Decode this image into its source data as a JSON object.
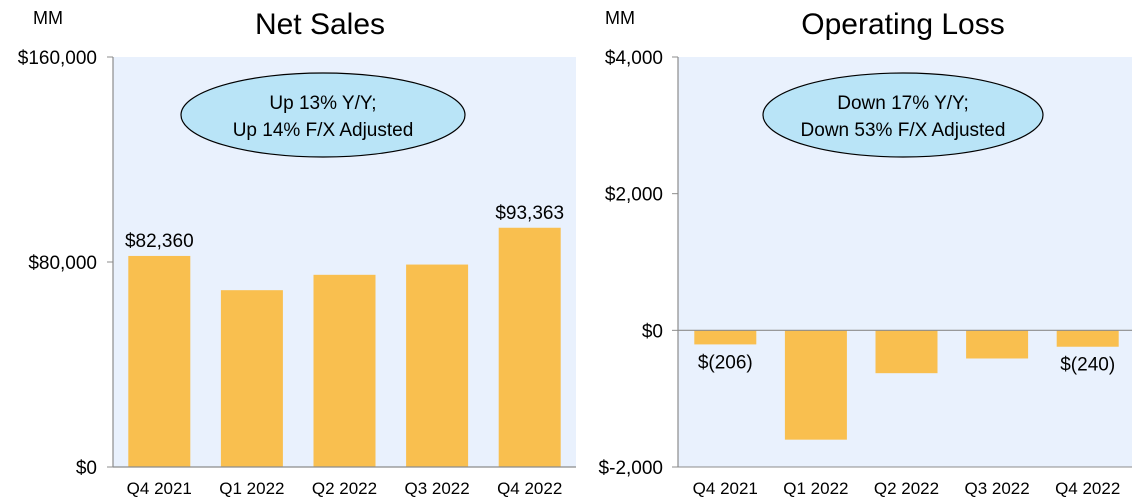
{
  "colors": {
    "bar": "#f9bf4f",
    "plot_background": "#e9f1fd",
    "callout_fill": "#b9e4f7",
    "axis": "#8c8c8c"
  },
  "chart_data": [
    {
      "type": "bar",
      "title": "Net Sales",
      "unit_label": "MM",
      "categories": [
        "Q4 2021",
        "Q1 2022",
        "Q2 2022",
        "Q3 2022",
        "Q4 2022"
      ],
      "values": [
        82360,
        69000,
        75000,
        79000,
        93363
      ],
      "data_labels": [
        "$82,360",
        "",
        "",
        "",
        "$93,363"
      ],
      "ylim": [
        0,
        160000
      ],
      "yticks": [
        0,
        80000,
        160000
      ],
      "ytick_labels": [
        "$0",
        "$80,000",
        "$160,000"
      ],
      "callout": [
        "Up 13% Y/Y;",
        "Up 14% F/X Adjusted"
      ],
      "grid": false
    },
    {
      "type": "bar",
      "title": "Operating Loss",
      "unit_label": "MM",
      "categories": [
        "Q4 2021",
        "Q1 2022",
        "Q2 2022",
        "Q3 2022",
        "Q4 2022"
      ],
      "values": [
        -206,
        -1600,
        -627,
        -412,
        -240
      ],
      "data_labels": [
        "$(206)",
        "",
        "",
        "",
        "$(240)"
      ],
      "ylim": [
        -2000,
        4000
      ],
      "yticks": [
        -2000,
        0,
        2000,
        4000
      ],
      "ytick_labels": [
        "$-2,000",
        "$0",
        "$2,000",
        "$4,000"
      ],
      "callout": [
        "Down 17% Y/Y;",
        "Down 53% F/X Adjusted"
      ],
      "grid": false
    }
  ]
}
